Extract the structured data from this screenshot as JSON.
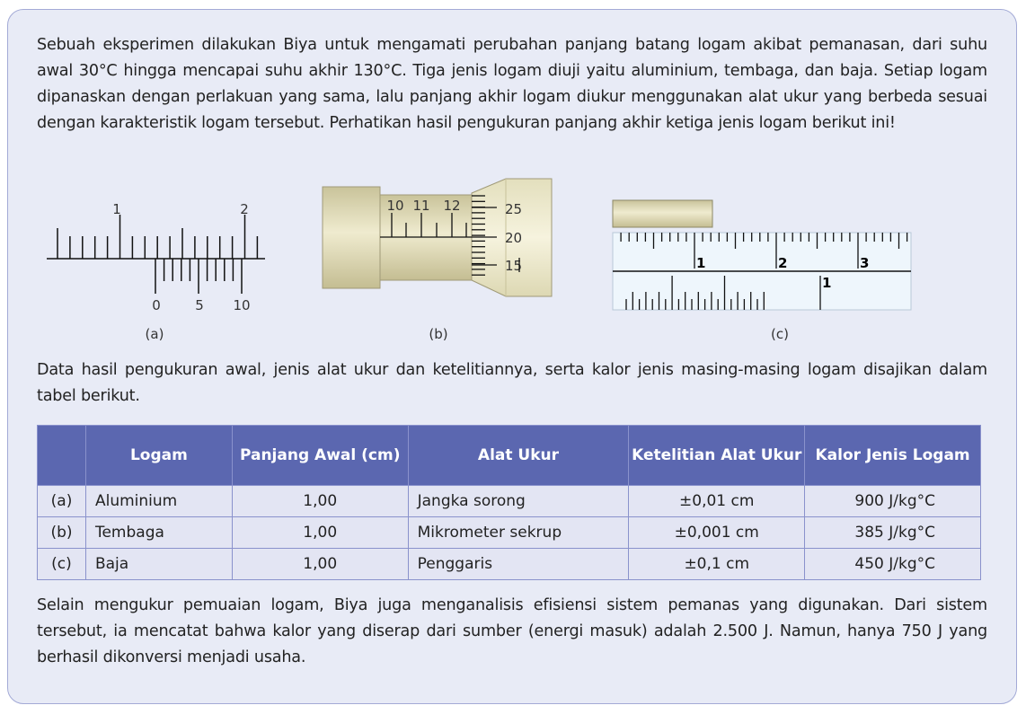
{
  "intro": "Sebuah eksperimen dilakukan Biya untuk mengamati perubahan panjang batang logam akibat pemanasan, dari suhu awal 30°C hingga mencapai suhu akhir 130°C. Tiga jenis logam diuji yaitu aluminium, tembaga, dan baja. Setiap logam dipanaskan dengan perlakuan yang sama, lalu panjang akhir logam diukur menggunakan alat ukur yang berbeda sesuai dengan karakteristik logam tersebut. Perhatikan hasil pengukuran panjang akhir ketiga jenis logam berikut ini!",
  "figures": {
    "a": {
      "caption": "(a)",
      "main_labels": [
        "1",
        "2"
      ],
      "vernier_labels": [
        "0",
        "5",
        "10"
      ]
    },
    "b": {
      "caption": "(b)",
      "sleeve_labels": [
        "10",
        "11",
        "12"
      ],
      "thimble_labels": [
        "25",
        "20",
        "15"
      ],
      "metal_color": "#d9d4ae"
    },
    "c": {
      "caption": "(c)",
      "main_labels": [
        "1",
        "2",
        "3"
      ],
      "vernier_label": "1",
      "ruler_color": "#eef6fc"
    }
  },
  "table_intro": "Data hasil pengukuran awal, jenis alat ukur dan ketelitiannya, serta kalor jenis masing-masing logam disajikan dalam tabel berikut.",
  "table": {
    "header_color": "#5b67b0",
    "headers": [
      "",
      "Logam",
      "Panjang Awal (cm)",
      "Alat Ukur",
      "Ketelitian Alat Ukur",
      "Kalor Jenis Logam"
    ],
    "rows": [
      [
        "(a)",
        "Aluminium",
        "1,00",
        "Jangka sorong",
        "±0,01 cm",
        "900 J/kg°C"
      ],
      [
        "(b)",
        "Tembaga",
        "1,00",
        "Mikrometer sekrup",
        "±0,001 cm",
        "385 J/kg°C"
      ],
      [
        "(c)",
        "Baja",
        "1,00",
        "Penggaris",
        "±0,1 cm",
        "450 J/kg°C"
      ]
    ]
  },
  "closing": "Selain mengukur pemuaian logam, Biya juga menganalisis efisiensi sistem pemanas yang digunakan. Dari sistem tersebut, ia mencatat bahwa kalor yang diserap dari sumber (energi masuk) adalah 2.500 J. Namun, hanya 750 J yang berhasil dikonversi menjadi usaha."
}
